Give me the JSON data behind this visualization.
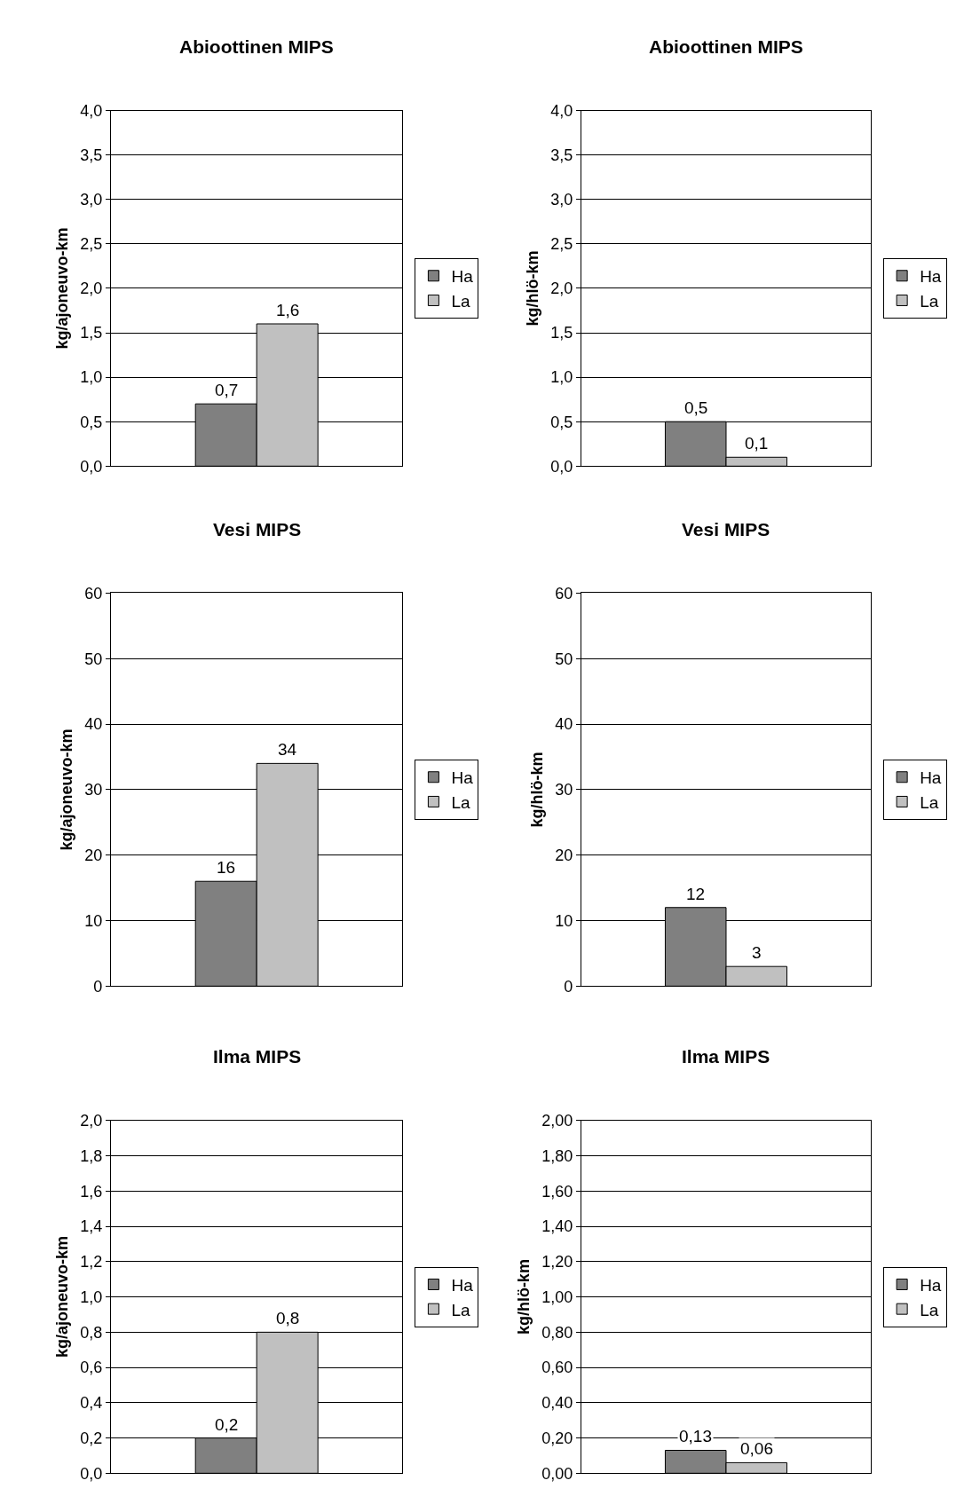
{
  "chart_data": [
    {
      "type": "bar",
      "title": "Abioottinen MIPS",
      "ylabel": "kg/ajoneuvo-km",
      "categories": [
        null
      ],
      "legend": "right",
      "grid": "y",
      "ylim": [
        0,
        4
      ],
      "yticks": [
        {
          "value": 0,
          "label": "0,0"
        },
        {
          "value": 0.5,
          "label": "0,5"
        },
        {
          "value": 1,
          "label": "1,0"
        },
        {
          "value": 1.5,
          "label": "1,5"
        },
        {
          "value": 2,
          "label": "2,0"
        },
        {
          "value": 2.5,
          "label": "2,5"
        },
        {
          "value": 3,
          "label": "3,0"
        },
        {
          "value": 3.5,
          "label": "3,5"
        },
        {
          "value": 4,
          "label": "4,0"
        }
      ],
      "series": [
        {
          "name": "Ha",
          "color": "#808080",
          "values": [
            0.7
          ],
          "value_labels": [
            "0,7"
          ]
        },
        {
          "name": "La",
          "color": "#c0c0c0",
          "values": [
            1.6
          ],
          "value_labels": [
            "1,6"
          ]
        }
      ]
    },
    {
      "type": "bar",
      "title": "Abioottinen MIPS",
      "ylabel": "kg/hlö-km",
      "categories": [
        null
      ],
      "legend": "right",
      "grid": "y",
      "ylim": [
        0,
        4
      ],
      "yticks": [
        {
          "value": 0,
          "label": "0,0"
        },
        {
          "value": 0.5,
          "label": "0,5"
        },
        {
          "value": 1,
          "label": "1,0"
        },
        {
          "value": 1.5,
          "label": "1,5"
        },
        {
          "value": 2,
          "label": "2,0"
        },
        {
          "value": 2.5,
          "label": "2,5"
        },
        {
          "value": 3,
          "label": "3,0"
        },
        {
          "value": 3.5,
          "label": "3,5"
        },
        {
          "value": 4,
          "label": "4,0"
        }
      ],
      "series": [
        {
          "name": "Ha",
          "color": "#808080",
          "values": [
            0.5
          ],
          "value_labels": [
            "0,5"
          ]
        },
        {
          "name": "La",
          "color": "#c0c0c0",
          "values": [
            0.1
          ],
          "value_labels": [
            "0,1"
          ]
        }
      ]
    },
    {
      "type": "bar",
      "title": "Vesi MIPS",
      "ylabel": "kg/ajoneuvo-km",
      "categories": [
        null
      ],
      "legend": "right",
      "grid": "y",
      "ylim": [
        0,
        60
      ],
      "yticks": [
        0,
        10,
        20,
        30,
        40,
        50,
        60
      ],
      "series": [
        {
          "name": "Ha",
          "color": "#808080",
          "values": [
            16
          ],
          "value_labels": [
            "16"
          ]
        },
        {
          "name": "La",
          "color": "#c0c0c0",
          "values": [
            34
          ],
          "value_labels": [
            "34"
          ]
        }
      ]
    },
    {
      "type": "bar",
      "title": "Vesi MIPS",
      "ylabel": "kg/hlö-km",
      "categories": [
        null
      ],
      "legend": "right",
      "grid": "y",
      "ylim": [
        0,
        60
      ],
      "yticks": [
        0,
        10,
        20,
        30,
        40,
        50,
        60
      ],
      "series": [
        {
          "name": "Ha",
          "color": "#808080",
          "values": [
            12
          ],
          "value_labels": [
            "12"
          ]
        },
        {
          "name": "La",
          "color": "#c0c0c0",
          "values": [
            3
          ],
          "value_labels": [
            "3"
          ]
        }
      ]
    },
    {
      "type": "bar",
      "title": "Ilma MIPS",
      "ylabel": "kg/ajoneuvo-km",
      "categories": [
        null
      ],
      "legend": "right",
      "grid": "y",
      "ylim": [
        0,
        2
      ],
      "yticks": [
        {
          "value": 0,
          "label": "0,0"
        },
        {
          "value": 0.2,
          "label": "0,2"
        },
        {
          "value": 0.4,
          "label": "0,4"
        },
        {
          "value": 0.6,
          "label": "0,6"
        },
        {
          "value": 0.8,
          "label": "0,8"
        },
        {
          "value": 1,
          "label": "1,0"
        },
        {
          "value": 1.2,
          "label": "1,2"
        },
        {
          "value": 1.4,
          "label": "1,4"
        },
        {
          "value": 1.6,
          "label": "1,6"
        },
        {
          "value": 1.8,
          "label": "1,8"
        },
        {
          "value": 2,
          "label": "2,0"
        }
      ],
      "series": [
        {
          "name": "Ha",
          "color": "#808080",
          "values": [
            0.2
          ],
          "value_labels": [
            "0,2"
          ]
        },
        {
          "name": "La",
          "color": "#c0c0c0",
          "values": [
            0.8
          ],
          "value_labels": [
            "0,8"
          ]
        }
      ]
    },
    {
      "type": "bar",
      "title": "Ilma MIPS",
      "ylabel": "kg/hlö-km",
      "categories": [
        null
      ],
      "legend": "right",
      "grid": "y",
      "ylim": [
        0,
        2
      ],
      "yticks": [
        {
          "value": 0,
          "label": "0,00"
        },
        {
          "value": 0.2,
          "label": "0,20"
        },
        {
          "value": 0.4,
          "label": "0,40"
        },
        {
          "value": 0.6,
          "label": "0,60"
        },
        {
          "value": 0.8,
          "label": "0,80"
        },
        {
          "value": 1,
          "label": "1,00"
        },
        {
          "value": 1.2,
          "label": "1,20"
        },
        {
          "value": 1.4,
          "label": "1,40"
        },
        {
          "value": 1.6,
          "label": "1,60"
        },
        {
          "value": 1.8,
          "label": "1,80"
        },
        {
          "value": 2,
          "label": "2,00"
        }
      ],
      "series": [
        {
          "name": "Ha",
          "color": "#808080",
          "values": [
            0.13
          ],
          "value_labels": [
            "0,13"
          ]
        },
        {
          "name": "La",
          "color": "#c0c0c0",
          "values": [
            0.06
          ],
          "value_labels": [
            "0,06"
          ]
        }
      ]
    }
  ]
}
